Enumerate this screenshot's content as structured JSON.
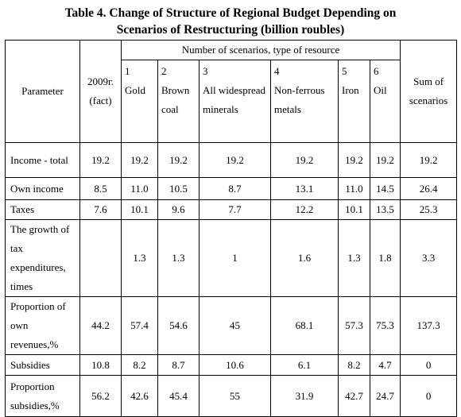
{
  "title": "Table 4. Change of Structure of Regional Budget Depending on Scenarios of Restructuring (billion roubles)",
  "table": {
    "header": {
      "parameter": "Parameter",
      "base": "2009г. (fact)",
      "group": "Number of scenarios, type of resource",
      "scenarios": [
        {
          "number": "1",
          "name": "Gold"
        },
        {
          "number": "2",
          "name": "Brown coal"
        },
        {
          "number": "3",
          "name": "All widespread minerals"
        },
        {
          "number": "4",
          "name": "Non-ferrous metals"
        },
        {
          "number": "5",
          "name": "Iron"
        },
        {
          "number": "6",
          "name": "Oil"
        }
      ],
      "sum": "Sum of scenarios"
    },
    "rows": [
      {
        "label": "Income - total",
        "cells": [
          "19.2",
          "19.2",
          "19.2",
          "19.2",
          "19.2",
          "19.2",
          "19.2",
          "19.2"
        ]
      },
      {
        "label": "Own income",
        "cells": [
          "8.5",
          "11.0",
          "10.5",
          "8.7",
          "13.1",
          "11.0",
          "14.5",
          "26.4"
        ]
      },
      {
        "label": "Taxes",
        "cells": [
          "7.6",
          "10.1",
          "9.6",
          "7.7",
          "12.2",
          "10.1",
          "13.5",
          "25.3"
        ]
      },
      {
        "label": "The growth of tax expenditures, times",
        "cells": [
          null,
          "1.3",
          "1.3",
          "1",
          "1.6",
          "1.3",
          "1.8",
          "3.3"
        ]
      },
      {
        "label": "Proportion of own revenues,%",
        "cells": [
          "44.2",
          "57.4",
          "54.6",
          "45",
          "68.1",
          "57.3",
          "75.3",
          "137.3"
        ]
      },
      {
        "label": "Subsidies",
        "cells": [
          "10.8",
          "8.2",
          "8.7",
          "10.6",
          "6.1",
          "8.2",
          "4.7",
          "0"
        ]
      },
      {
        "label": "Proportion subsidies,%",
        "cells": [
          "56.2",
          "42.6",
          "45.4",
          "55",
          "31.9",
          "42.7",
          "24.7",
          "0"
        ]
      }
    ]
  }
}
